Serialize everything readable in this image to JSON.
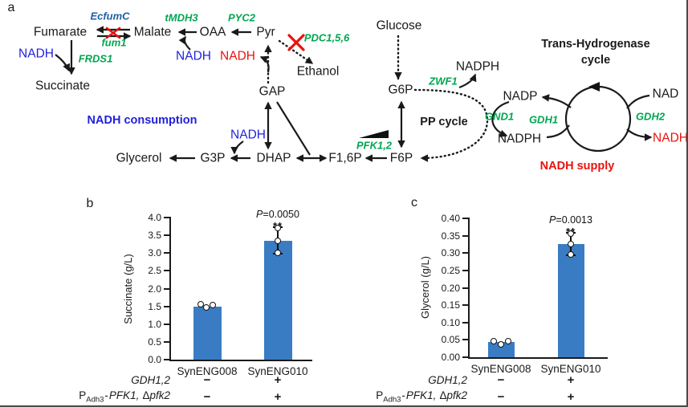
{
  "panel_labels": {
    "a": "a",
    "b": "b",
    "c": "c"
  },
  "colors": {
    "bar_blue": "#3a7cc3",
    "nadh_blue": "#2222dd",
    "nadh_red": "#e8130c",
    "gene_green": "#00a651",
    "ecfumc_blue": "#2060a8",
    "ink": "#1a1a1a"
  },
  "pathway": {
    "nodes": {
      "fumarate": "Fumarate",
      "malate": "Malate",
      "oaa": "OAA",
      "pyr": "Pyr",
      "ethanol": "Ethanol",
      "succinate": "Succinate",
      "gap": "GAP",
      "glucose": "Glucose",
      "g6p": "G6P",
      "f6p": "F6P",
      "f16p": "F1,6P",
      "dhap": "DHAP",
      "g3p": "G3P",
      "glycerol": "Glycerol",
      "nadph_pp": "NADPH",
      "nadp": "NADP",
      "nadph_cycle": "NADPH",
      "nad": "NAD"
    },
    "cofactors": {
      "nadh_fumarate": "NADH",
      "nadh_malate": "NADH",
      "nadh_gap": "NADH",
      "nadh_dhap": "NADH",
      "nadh_output": "NADH"
    },
    "genes": {
      "ecfumc": "EcfumC",
      "fum1": "fum1",
      "tmdh3": "tMDH3",
      "pyc2": "PYC2",
      "pdc156": "PDC1,5,6",
      "frds1": "FRDS1",
      "zwf1": "ZWF1",
      "pfk12": "PFK1,2",
      "gnd1": "GND1",
      "gdh1": "GDH1",
      "gdh2": "GDH2"
    },
    "titles": {
      "nadh_consumption": "NADH consumption",
      "pp_cycle": "PP cycle",
      "trans1": "Trans-Hydrogenase",
      "trans2": "cycle",
      "nadh_supply": "NADH supply"
    }
  },
  "conditions": {
    "row1": {
      "label": "GDH1,2",
      "v1": "−",
      "v2": "+"
    },
    "row2": {
      "pre": "P",
      "sub": "Adh3",
      "dash": "-",
      "gene1": "PFK1,",
      "delta": "Δ",
      "gene2": "pfk2",
      "v1": "−",
      "v2": "+"
    }
  },
  "chart_data": [
    {
      "type": "bar",
      "panel": "b",
      "ylabel": "Succinate (g/L)",
      "ylim": [
        0.0,
        4.0
      ],
      "yticks": [
        "0.0",
        "0.5",
        "1.0",
        "1.5",
        "2.0",
        "2.5",
        "3.0",
        "3.5",
        "4.0"
      ],
      "categories": [
        "SynENG008",
        "SynENG010"
      ],
      "values": [
        1.5,
        3.35
      ],
      "error_bars": [
        null,
        [
          3.0,
          3.7
        ]
      ],
      "points": [
        [
          1.56,
          1.47,
          1.53
        ],
        [
          3.7,
          3.35,
          3.0
        ]
      ],
      "annotations": [
        {
          "bar": "SynENG010",
          "p_value": "P=0.0050",
          "stars": "**"
        }
      ],
      "condition_rows": [
        {
          "label": "GDH1,2",
          "values": [
            "−",
            "+"
          ]
        },
        {
          "label": "PAdh3-PFK1, Δpfk2",
          "values": [
            "−",
            "+"
          ]
        }
      ],
      "bar_color": "#3a7cc3"
    },
    {
      "type": "bar",
      "panel": "c",
      "ylabel": "Glycerol (g/L)",
      "ylim": [
        0.0,
        0.4
      ],
      "yticks": [
        "0.00",
        "0.05",
        "0.10",
        "0.15",
        "0.20",
        "0.25",
        "0.30",
        "0.35",
        "0.40"
      ],
      "categories": [
        "SynENG008",
        "SynENG010"
      ],
      "values": [
        0.043,
        0.325
      ],
      "error_bars": [
        null,
        [
          0.295,
          0.355
        ]
      ],
      "points": [
        [
          0.047,
          0.036,
          0.047
        ],
        [
          0.355,
          0.325,
          0.295
        ]
      ],
      "annotations": [
        {
          "bar": "SynENG010",
          "p_value": "P=0.0013",
          "stars": "**"
        }
      ],
      "condition_rows": [
        {
          "label": "GDH1,2",
          "values": [
            "−",
            "+"
          ]
        },
        {
          "label": "PAdh3-PFK1, Δpfk2",
          "values": [
            "−",
            "+"
          ]
        }
      ],
      "bar_color": "#3a7cc3"
    }
  ]
}
